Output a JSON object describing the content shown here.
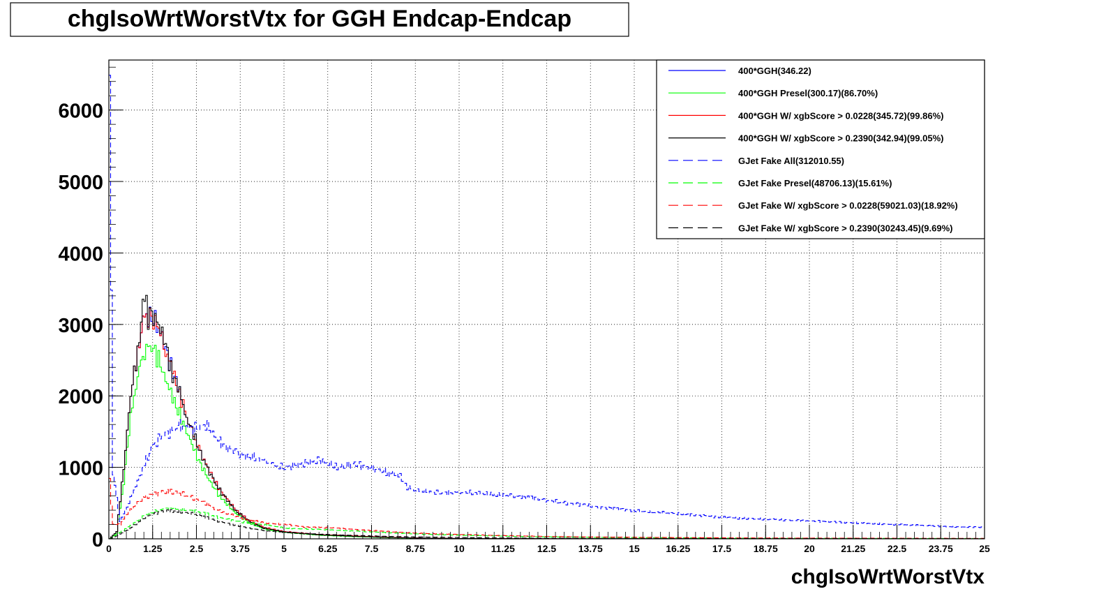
{
  "chart_data": {
    "type": "line",
    "title": "chgIsoWrtWorstVtx for GGH Endcap-Endcap",
    "xlabel": "chgIsoWrtWorstVtx",
    "ylabel": "",
    "xlim": [
      0,
      25
    ],
    "ylim": [
      0,
      6700
    ],
    "x_ticks": [
      "0",
      "1.25",
      "2.5",
      "3.75",
      "5",
      "6.25",
      "7.5",
      "8.75",
      "10",
      "11.25",
      "12.5",
      "13.75",
      "15",
      "16.25",
      "17.5",
      "18.75",
      "20",
      "21.25",
      "22.5",
      "23.75",
      "25"
    ],
    "y_ticks": [
      "0",
      "1000",
      "2000",
      "3000",
      "4000",
      "5000",
      "6000"
    ],
    "grid": true,
    "legend_position": "top-right",
    "series": [
      {
        "name": "400*GGH(346.22)",
        "color": "#0000ff",
        "style": "solid",
        "points": [
          [
            0,
            0
          ],
          [
            0.2,
            100
          ],
          [
            0.4,
            1000
          ],
          [
            0.6,
            2000
          ],
          [
            0.8,
            2650
          ],
          [
            1.0,
            3100
          ],
          [
            1.2,
            3120
          ],
          [
            1.4,
            2950
          ],
          [
            1.6,
            2650
          ],
          [
            1.8,
            2350
          ],
          [
            2.0,
            2050
          ],
          [
            2.2,
            1700
          ],
          [
            2.4,
            1450
          ],
          [
            2.6,
            1200
          ],
          [
            2.8,
            1000
          ],
          [
            3.0,
            800
          ],
          [
            3.2,
            650
          ],
          [
            3.6,
            400
          ],
          [
            4.0,
            250
          ],
          [
            4.4,
            160
          ],
          [
            5.0,
            100
          ],
          [
            6.0,
            60
          ],
          [
            7.0,
            40
          ],
          [
            8.0,
            20
          ],
          [
            9.0,
            10
          ],
          [
            10.0,
            5
          ],
          [
            12.0,
            2
          ],
          [
            25,
            0
          ]
        ]
      },
      {
        "name": "400*GGH Presel(300.17)(86.70%)",
        "color": "#00ff00",
        "style": "solid",
        "points": [
          [
            0,
            0
          ],
          [
            0.2,
            80
          ],
          [
            0.4,
            800
          ],
          [
            0.6,
            1700
          ],
          [
            0.8,
            2300
          ],
          [
            1.0,
            2650
          ],
          [
            1.2,
            2700
          ],
          [
            1.4,
            2500
          ],
          [
            1.6,
            2250
          ],
          [
            1.8,
            1950
          ],
          [
            2.0,
            1750
          ],
          [
            2.2,
            1500
          ],
          [
            2.4,
            1250
          ],
          [
            2.6,
            1050
          ],
          [
            2.8,
            850
          ],
          [
            3.0,
            700
          ],
          [
            3.2,
            560
          ],
          [
            3.6,
            360
          ],
          [
            4.0,
            220
          ],
          [
            4.4,
            140
          ],
          [
            5.0,
            90
          ],
          [
            6.0,
            50
          ],
          [
            7.0,
            30
          ],
          [
            8.0,
            15
          ],
          [
            9.0,
            8
          ],
          [
            10.0,
            4
          ],
          [
            12.0,
            2
          ],
          [
            25,
            0
          ]
        ]
      },
      {
        "name": "400*GGH W/ xgbScore > 0.0228(345.72)(99.86%)",
        "color": "#ff0000",
        "style": "solid",
        "points": [
          [
            0,
            0
          ],
          [
            0.2,
            100
          ],
          [
            0.4,
            1000
          ],
          [
            0.6,
            2000
          ],
          [
            0.8,
            2650
          ],
          [
            1.0,
            3100
          ],
          [
            1.2,
            3100
          ],
          [
            1.4,
            2950
          ],
          [
            1.6,
            2640
          ],
          [
            1.8,
            2340
          ],
          [
            2.0,
            2040
          ],
          [
            2.2,
            1700
          ],
          [
            2.4,
            1440
          ],
          [
            2.6,
            1200
          ],
          [
            2.8,
            1000
          ],
          [
            3.0,
            800
          ],
          [
            3.2,
            650
          ],
          [
            3.6,
            400
          ],
          [
            4.0,
            250
          ],
          [
            4.4,
            160
          ],
          [
            5.0,
            100
          ],
          [
            6.0,
            60
          ],
          [
            7.0,
            40
          ],
          [
            8.0,
            20
          ],
          [
            9.0,
            10
          ],
          [
            10.0,
            5
          ],
          [
            12.0,
            2
          ],
          [
            25,
            0
          ]
        ]
      },
      {
        "name": "400*GGH W/ xgbScore > 0.2390(342.94)(99.05%)",
        "color": "#000000",
        "style": "solid",
        "points": [
          [
            0,
            0
          ],
          [
            0.2,
            100
          ],
          [
            0.4,
            1000
          ],
          [
            0.6,
            2000
          ],
          [
            0.8,
            2650
          ],
          [
            1.0,
            3400
          ],
          [
            1.1,
            3050
          ],
          [
            1.2,
            3150
          ],
          [
            1.4,
            3000
          ],
          [
            1.6,
            2700
          ],
          [
            1.8,
            2300
          ],
          [
            2.0,
            2050
          ],
          [
            2.2,
            1700
          ],
          [
            2.4,
            1450
          ],
          [
            2.6,
            1200
          ],
          [
            2.8,
            980
          ],
          [
            3.0,
            790
          ],
          [
            3.2,
            640
          ],
          [
            3.6,
            390
          ],
          [
            4.0,
            240
          ],
          [
            4.4,
            150
          ],
          [
            5.0,
            95
          ],
          [
            6.0,
            55
          ],
          [
            7.0,
            35
          ],
          [
            8.0,
            18
          ],
          [
            9.0,
            9
          ],
          [
            10.0,
            4
          ],
          [
            12.0,
            2
          ],
          [
            25,
            0
          ]
        ]
      },
      {
        "name": "GJet Fake All(312010.55)",
        "color": "#0000ff",
        "style": "dashed",
        "points": [
          [
            0,
            6400
          ],
          [
            0.1,
            900
          ],
          [
            0.3,
            250
          ],
          [
            0.5,
            450
          ],
          [
            0.8,
            800
          ],
          [
            1.0,
            1050
          ],
          [
            1.25,
            1300
          ],
          [
            1.5,
            1450
          ],
          [
            1.75,
            1500
          ],
          [
            2.0,
            1580
          ],
          [
            2.25,
            1550
          ],
          [
            2.5,
            1550
          ],
          [
            2.75,
            1600
          ],
          [
            3.0,
            1450
          ],
          [
            3.25,
            1300
          ],
          [
            3.5,
            1250
          ],
          [
            3.75,
            1180
          ],
          [
            4.0,
            1150
          ],
          [
            4.25,
            1120
          ],
          [
            4.5,
            1080
          ],
          [
            4.75,
            1020
          ],
          [
            5.0,
            1000
          ],
          [
            5.5,
            1050
          ],
          [
            6.0,
            1100
          ],
          [
            6.25,
            1050
          ],
          [
            6.5,
            1000
          ],
          [
            7.0,
            1050
          ],
          [
            7.5,
            980
          ],
          [
            8.0,
            920
          ],
          [
            8.25,
            900
          ],
          [
            8.5,
            720
          ],
          [
            8.75,
            680
          ],
          [
            9.0,
            660
          ],
          [
            9.5,
            640
          ],
          [
            10.0,
            650
          ],
          [
            10.5,
            640
          ],
          [
            11.0,
            620
          ],
          [
            11.5,
            600
          ],
          [
            12.0,
            580
          ],
          [
            12.5,
            540
          ],
          [
            13.0,
            500
          ],
          [
            13.5,
            480
          ],
          [
            14.0,
            440
          ],
          [
            14.5,
            420
          ],
          [
            15.0,
            390
          ],
          [
            15.5,
            370
          ],
          [
            16.0,
            360
          ],
          [
            16.5,
            340
          ],
          [
            17.0,
            320
          ],
          [
            17.5,
            300
          ],
          [
            18.0,
            290
          ],
          [
            18.5,
            280
          ],
          [
            19.0,
            270
          ],
          [
            19.5,
            260
          ],
          [
            20.0,
            250
          ],
          [
            20.5,
            240
          ],
          [
            21.0,
            230
          ],
          [
            21.5,
            220
          ],
          [
            22.0,
            210
          ],
          [
            22.5,
            200
          ],
          [
            23.0,
            190
          ],
          [
            23.5,
            180
          ],
          [
            24.0,
            170
          ],
          [
            24.5,
            165
          ],
          [
            25.0,
            160
          ]
        ]
      },
      {
        "name": "GJet Fake Presel(48706.13)(15.61%)",
        "color": "#00ff00",
        "style": "dashed",
        "points": [
          [
            0,
            0
          ],
          [
            0.2,
            60
          ],
          [
            0.5,
            150
          ],
          [
            0.8,
            250
          ],
          [
            1.0,
            330
          ],
          [
            1.25,
            380
          ],
          [
            1.5,
            420
          ],
          [
            1.75,
            430
          ],
          [
            2.0,
            420
          ],
          [
            2.25,
            400
          ],
          [
            2.5,
            380
          ],
          [
            2.75,
            350
          ],
          [
            3.0,
            310
          ],
          [
            3.5,
            260
          ],
          [
            4.0,
            220
          ],
          [
            4.5,
            190
          ],
          [
            5.0,
            150
          ],
          [
            5.5,
            140
          ],
          [
            6.0,
            130
          ],
          [
            6.5,
            120
          ],
          [
            7.0,
            110
          ],
          [
            7.5,
            95
          ],
          [
            8.0,
            85
          ],
          [
            8.5,
            75
          ],
          [
            9.0,
            65
          ],
          [
            10.0,
            50
          ],
          [
            11.0,
            40
          ],
          [
            12.0,
            30
          ],
          [
            13.0,
            25
          ],
          [
            14.0,
            20
          ],
          [
            16.0,
            15
          ],
          [
            18.0,
            10
          ],
          [
            20.0,
            8
          ],
          [
            22.0,
            6
          ],
          [
            25.0,
            5
          ]
        ]
      },
      {
        "name": "GJet Fake W/ xgbScore > 0.0228(59021.03)(18.92%)",
        "color": "#ff0000",
        "style": "dashed",
        "points": [
          [
            0,
            800
          ],
          [
            0.1,
            200
          ],
          [
            0.3,
            200
          ],
          [
            0.5,
            350
          ],
          [
            0.8,
            500
          ],
          [
            1.0,
            580
          ],
          [
            1.25,
            620
          ],
          [
            1.5,
            650
          ],
          [
            1.75,
            660
          ],
          [
            2.0,
            640
          ],
          [
            2.25,
            600
          ],
          [
            2.5,
            550
          ],
          [
            2.75,
            500
          ],
          [
            3.0,
            420
          ],
          [
            3.5,
            330
          ],
          [
            4.0,
            260
          ],
          [
            4.5,
            220
          ],
          [
            5.0,
            200
          ],
          [
            5.5,
            170
          ],
          [
            6.0,
            160
          ],
          [
            6.5,
            150
          ],
          [
            7.0,
            130
          ],
          [
            7.5,
            115
          ],
          [
            8.0,
            100
          ],
          [
            8.5,
            85
          ],
          [
            9.0,
            75
          ],
          [
            10.0,
            60
          ],
          [
            11.0,
            48
          ],
          [
            12.0,
            38
          ],
          [
            13.0,
            30
          ],
          [
            14.0,
            25
          ],
          [
            16.0,
            18
          ],
          [
            18.0,
            12
          ],
          [
            20.0,
            10
          ],
          [
            22.0,
            8
          ],
          [
            25.0,
            6
          ]
        ]
      },
      {
        "name": "GJet Fake W/ xgbScore > 0.2390(30243.45)(9.69%)",
        "color": "#000000",
        "style": "dashed",
        "points": [
          [
            0,
            0
          ],
          [
            0.2,
            40
          ],
          [
            0.5,
            120
          ],
          [
            0.8,
            220
          ],
          [
            1.0,
            300
          ],
          [
            1.25,
            350
          ],
          [
            1.5,
            380
          ],
          [
            1.75,
            390
          ],
          [
            2.0,
            380
          ],
          [
            2.25,
            360
          ],
          [
            2.5,
            340
          ],
          [
            2.75,
            300
          ],
          [
            3.0,
            260
          ],
          [
            3.5,
            200
          ],
          [
            4.0,
            150
          ],
          [
            4.5,
            110
          ],
          [
            5.0,
            90
          ],
          [
            5.5,
            75
          ],
          [
            6.0,
            65
          ],
          [
            6.5,
            55
          ],
          [
            7.0,
            48
          ],
          [
            7.5,
            40
          ],
          [
            8.0,
            34
          ],
          [
            9.0,
            25
          ],
          [
            10.0,
            18
          ],
          [
            11.0,
            13
          ],
          [
            12.0,
            10
          ],
          [
            14.0,
            7
          ],
          [
            16.0,
            5
          ],
          [
            18.0,
            4
          ],
          [
            20.0,
            3
          ],
          [
            25.0,
            2
          ]
        ]
      }
    ]
  }
}
